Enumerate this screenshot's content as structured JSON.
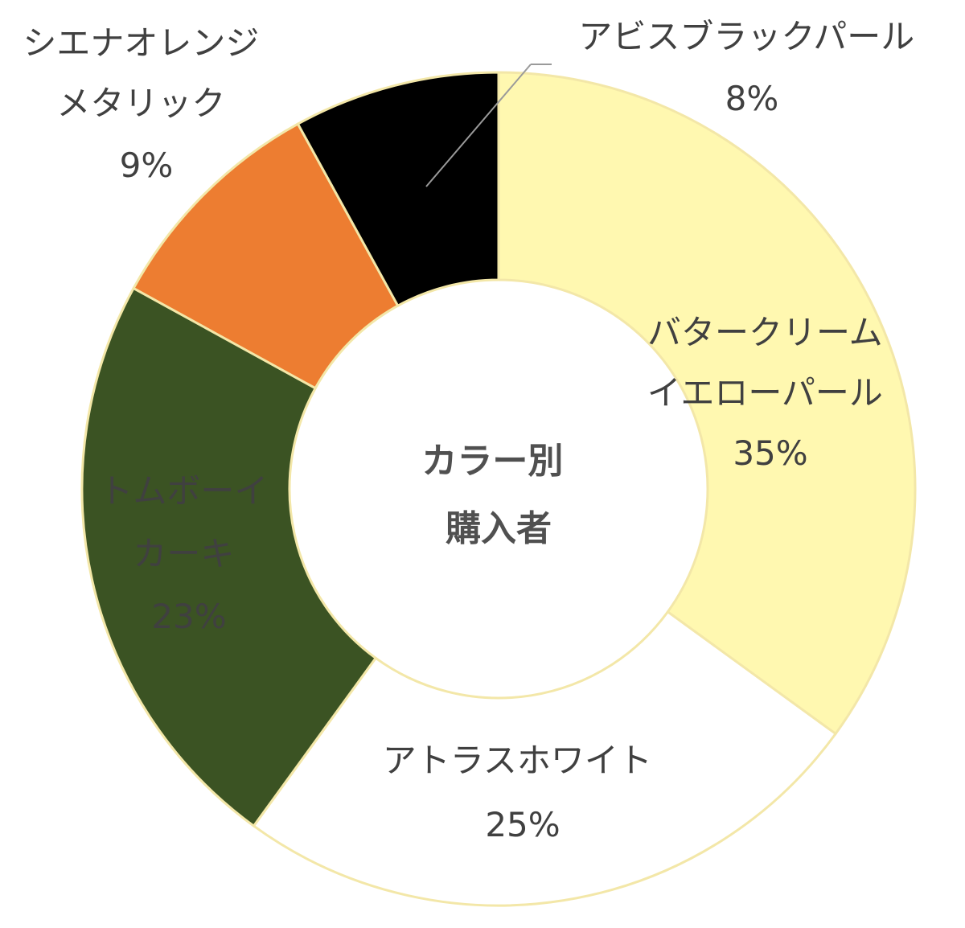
{
  "chart_data": {
    "type": "pie",
    "center_title": [
      "カラー別",
      "購入者"
    ],
    "slices": [
      {
        "name_lines": [
          "バタークリーム",
          "イエローパール"
        ],
        "value": 35,
        "label": "35%",
        "color": "#FFF8B0",
        "label_color": "#404040"
      },
      {
        "name_lines": [
          "アトラスホワイト"
        ],
        "value": 25,
        "label": "25%",
        "color": "#FFFFFF",
        "label_color": "#404040"
      },
      {
        "name_lines": [
          "トムボーイ",
          "カーキ"
        ],
        "value": 23,
        "label": "23%",
        "color": "#3B5323",
        "label_color": "#FFFFFF"
      },
      {
        "name_lines": [
          "シエナオレンジ",
          "メタリック"
        ],
        "value": 9,
        "label": "9%",
        "color": "#ED7D31",
        "label_color": "#404040"
      },
      {
        "name_lines": [
          "アビスブラックパール"
        ],
        "value": 8,
        "label": "8%",
        "color": "#000000",
        "label_color": "#404040"
      }
    ],
    "donut": true,
    "start": "12 o'clock, clockwise",
    "border_color": "#F3E7A8"
  }
}
